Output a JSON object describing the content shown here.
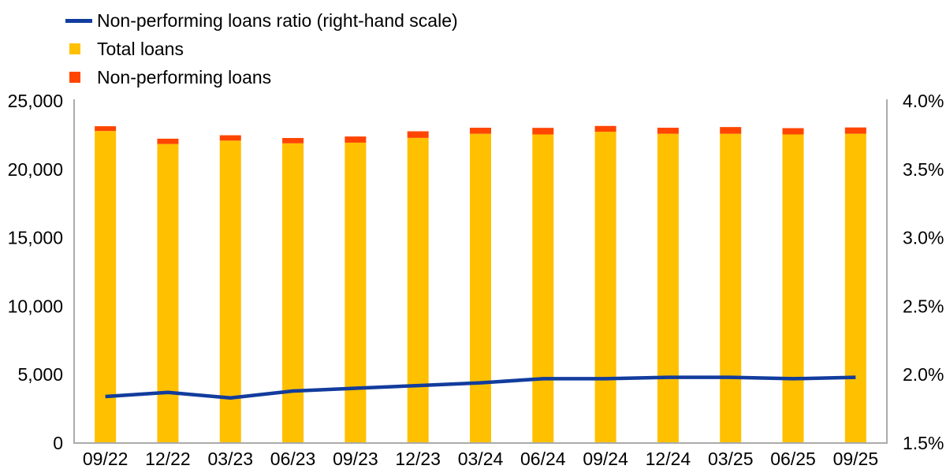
{
  "page": {
    "background": "#FFFFFF"
  },
  "legend": [
    {
      "label": "Non-performing loans ratio (right-hand scale)",
      "marker": "line",
      "color": "#123C9D"
    },
    {
      "label": "Total loans",
      "marker": "square",
      "color": "#FFC000"
    },
    {
      "label": "Non-performing loans",
      "marker": "square",
      "color": "#FF4500"
    }
  ],
  "chart_data": {
    "type": "bar",
    "subtype": "stacked-bar-with-line-combo",
    "title": "",
    "categories": [
      "09/22",
      "12/22",
      "03/23",
      "06/23",
      "09/23",
      "12/23",
      "03/24",
      "06/24",
      "09/24",
      "12/24",
      "03/25",
      "06/25",
      "09/25"
    ],
    "series": [
      {
        "name": "Total loans",
        "type": "bar",
        "axis": "left",
        "color": "#FFC000",
        "values": [
          22800,
          21850,
          22100,
          21900,
          21950,
          22300,
          22600,
          22550,
          22750,
          22600,
          22600,
          22550,
          22600
        ]
      },
      {
        "name": "Non-performing loans",
        "type": "bar",
        "axis": "left",
        "stacked_on": "Total loans",
        "color": "#FF4500",
        "values": [
          350,
          390,
          390,
          390,
          450,
          480,
          440,
          480,
          420,
          440,
          490,
          460,
          460
        ]
      },
      {
        "name": "Non-performing loans ratio (right-hand scale)",
        "type": "line",
        "axis": "right",
        "color": "#123C9D",
        "values": [
          1.84,
          1.87,
          1.83,
          1.88,
          1.9,
          1.92,
          1.94,
          1.97,
          1.97,
          1.98,
          1.98,
          1.97,
          1.98
        ]
      }
    ],
    "left_axis": {
      "label": "",
      "min": 0,
      "max": 25000,
      "ticks": [
        "0",
        "5,000",
        "10,000",
        "15,000",
        "20,000",
        "25,000"
      ]
    },
    "right_axis": {
      "label": "",
      "min": 1.5,
      "max": 4.0,
      "ticks": [
        "1.5%",
        "2.0%",
        "2.5%",
        "3.0%",
        "3.5%",
        "4.0%"
      ]
    },
    "grid": false,
    "legend_position": "top-left",
    "axis_color": "#ABABAB",
    "text_color": "#000000"
  }
}
